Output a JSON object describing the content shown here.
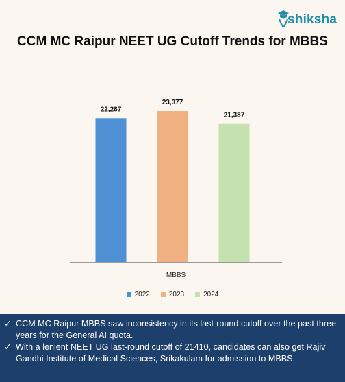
{
  "brand": {
    "name": "shiksha"
  },
  "chart_data": {
    "type": "bar",
    "title": "CCM MC Raipur NEET UG Cutoff Trends for MBBS",
    "categories": [
      "MBBS"
    ],
    "series": [
      {
        "name": "2022",
        "values": [
          22287
        ],
        "label": "22,287",
        "color": "#4f8fd3"
      },
      {
        "name": "2023",
        "values": [
          23377
        ],
        "label": "23,377",
        "color": "#f2b183"
      },
      {
        "name": "2024",
        "values": [
          21387
        ],
        "label": "21,387",
        "color": "#c5e1b0"
      }
    ],
    "ylim": [
      0,
      25000
    ],
    "grid": false,
    "legend": "bottom"
  },
  "notes": {
    "check": "✓",
    "items": [
      "CCM MC Raipur MBBS saw inconsistency in its last-round cutoff over the past three years for the General AI quota.",
      "With a lenient NEET UG last-round cutoff of 21410, candidates can also get Rajiv Gandhi Institute of Medical Sciences, Srikakulam for admission to MBBS."
    ]
  }
}
